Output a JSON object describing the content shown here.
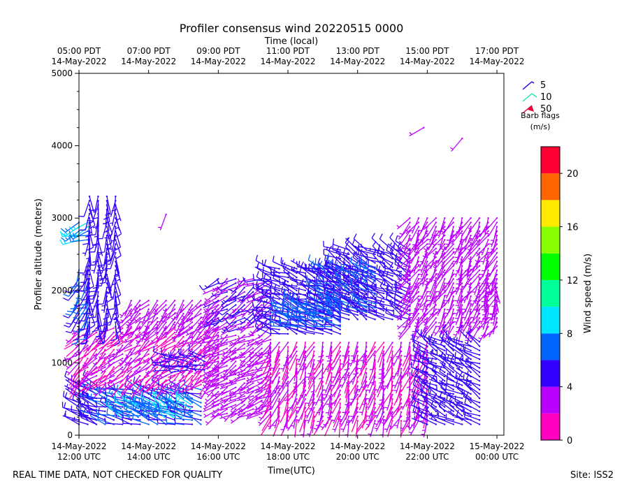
{
  "chart_data": {
    "type": "wind-barb-profile",
    "title": "Profiler consensus wind 20220515 0000",
    "top_axis_label": "Time (local)",
    "xlabel": "Time(UTC)",
    "ylabel": "Profiler altitude (meters)",
    "xlim_hours_utc": [
      12.0,
      24.2
    ],
    "ylim": [
      0,
      5000
    ],
    "yticks": [
      0,
      1000,
      2000,
      3000,
      4000,
      5000
    ],
    "x_ticks_utc": [
      {
        "hour": 12,
        "line1": "14-May-2022",
        "line2": "12:00 UTC"
      },
      {
        "hour": 14,
        "line1": "14-May-2022",
        "line2": "14:00 UTC"
      },
      {
        "hour": 16,
        "line1": "14-May-2022",
        "line2": "16:00 UTC"
      },
      {
        "hour": 18,
        "line1": "14-May-2022",
        "line2": "18:00 UTC"
      },
      {
        "hour": 20,
        "line1": "14-May-2022",
        "line2": "20:00 UTC"
      },
      {
        "hour": 22,
        "line1": "14-May-2022",
        "line2": "22:00 UTC"
      },
      {
        "hour": 24,
        "line1": "15-May-2022",
        "line2": "00:00 UTC"
      }
    ],
    "x_ticks_local": [
      {
        "hour": 12,
        "line1": "05:00 PDT",
        "line2": "14-May-2022"
      },
      {
        "hour": 14,
        "line1": "07:00 PDT",
        "line2": "14-May-2022"
      },
      {
        "hour": 16,
        "line1": "09:00 PDT",
        "line2": "14-May-2022"
      },
      {
        "hour": 18,
        "line1": "11:00 PDT",
        "line2": "14-May-2022"
      },
      {
        "hour": 20,
        "line1": "13:00 PDT",
        "line2": "14-May-2022"
      },
      {
        "hour": 22,
        "line1": "15:00 PDT",
        "line2": "14-May-2022"
      },
      {
        "hour": 24,
        "line1": "17:00 PDT",
        "line2": "14-May-2022"
      }
    ],
    "barb_legend": {
      "title_line1": "Barb flags",
      "title_line2": "(m/s)",
      "items": [
        {
          "label": "5",
          "color": "#1a00e6"
        },
        {
          "label": "10",
          "color": "#19e6b0"
        },
        {
          "label": "50",
          "color": "#e6003a"
        }
      ]
    },
    "colorbar": {
      "label": "Wind speed (m/s)",
      "range": [
        0,
        22
      ],
      "ticks": [
        0,
        4,
        8,
        12,
        16,
        20
      ],
      "bins": [
        {
          "from": 0,
          "to": 2,
          "color": "#ff00c0"
        },
        {
          "from": 2,
          "to": 4,
          "color": "#bb00ff"
        },
        {
          "from": 4,
          "to": 6,
          "color": "#3300ff"
        },
        {
          "from": 6,
          "to": 8,
          "color": "#0066ff"
        },
        {
          "from": 8,
          "to": 10,
          "color": "#00e5ff"
        },
        {
          "from": 10,
          "to": 12,
          "color": "#00ff99"
        },
        {
          "from": 12,
          "to": 14,
          "color": "#00ff00"
        },
        {
          "from": 14,
          "to": 16,
          "color": "#88ff00"
        },
        {
          "from": 16,
          "to": 18,
          "color": "#ffea00"
        },
        {
          "from": 18,
          "to": 20,
          "color": "#ff6600"
        },
        {
          "from": 20,
          "to": 22,
          "color": "#ff0033"
        }
      ]
    },
    "wind_layers": [
      {
        "t_start": 12.0,
        "t_end": 12.5,
        "z_start": 150,
        "z_end": 700,
        "dir": 300,
        "speed": 5
      },
      {
        "t_start": 12.5,
        "t_end": 15.5,
        "z_start": 150,
        "z_end": 650,
        "dir": 290,
        "speed": 6
      },
      {
        "t_start": 13.2,
        "t_end": 15.4,
        "z_start": 250,
        "z_end": 450,
        "dir": 300,
        "speed": 8
      },
      {
        "t_start": 12.0,
        "t_end": 16.0,
        "z_start": 700,
        "z_end": 1500,
        "dir": 230,
        "speed": 2
      },
      {
        "t_start": 12.0,
        "t_end": 12.3,
        "z_start": 1500,
        "z_end": 2300,
        "dir": 200,
        "speed": 6
      },
      {
        "t_start": 12.0,
        "t_end": 12.4,
        "z_start": 2700,
        "z_end": 2950,
        "dir": 250,
        "speed": 8
      },
      {
        "t_start": 12.3,
        "t_end": 13.2,
        "z_start": 1500,
        "z_end": 3300,
        "dir": 180,
        "speed": 5
      },
      {
        "t_start": 13.5,
        "t_end": 16.0,
        "z_start": 1500,
        "z_end": 1900,
        "dir": 220,
        "speed": 3
      },
      {
        "t_start": 14.6,
        "t_end": 15.6,
        "z_start": 900,
        "z_end": 1100,
        "dir": 280,
        "speed": 5
      },
      {
        "t_start": 16.0,
        "t_end": 17.5,
        "z_start": 300,
        "z_end": 1400,
        "dir": 240,
        "speed": 3
      },
      {
        "t_start": 16.0,
        "t_end": 17.5,
        "z_start": 1500,
        "z_end": 2200,
        "dir": 240,
        "speed": 4
      },
      {
        "t_start": 17.5,
        "t_end": 22.0,
        "z_start": 200,
        "z_end": 1300,
        "dir": 200,
        "speed": 2
      },
      {
        "t_start": 17.5,
        "t_end": 19.5,
        "z_start": 1400,
        "z_end": 2300,
        "dir": 290,
        "speed": 5
      },
      {
        "t_start": 18.0,
        "t_end": 19.5,
        "z_start": 1500,
        "z_end": 1800,
        "dir": 290,
        "speed": 7
      },
      {
        "t_start": 19.5,
        "t_end": 21.5,
        "z_start": 1600,
        "z_end": 2600,
        "dir": 300,
        "speed": 5
      },
      {
        "t_start": 19.0,
        "t_end": 20.5,
        "z_start": 1700,
        "z_end": 2300,
        "dir": 300,
        "speed": 6
      },
      {
        "t_start": 21.5,
        "t_end": 24.0,
        "z_start": 1500,
        "z_end": 3000,
        "dir": 210,
        "speed": 3
      },
      {
        "t_start": 22.0,
        "t_end": 23.6,
        "z_start": 150,
        "z_end": 1300,
        "dir": 300,
        "speed": 5
      },
      {
        "t_start": 23.7,
        "t_end": 24.0,
        "z_start": 1800,
        "z_end": 2200,
        "dir": 180,
        "speed": 3
      }
    ],
    "isolated_barbs": [
      {
        "t": 14.5,
        "z": 3050,
        "dir": 200,
        "speed": 3
      },
      {
        "t": 21.9,
        "z": 4250,
        "dir": 240,
        "speed": 3
      },
      {
        "t": 23.0,
        "z": 4100,
        "dir": 220,
        "speed": 3
      }
    ]
  },
  "footer": {
    "left_note": "REAL TIME DATA, NOT CHECKED FOR QUALITY",
    "site": "Site: ISS2"
  }
}
